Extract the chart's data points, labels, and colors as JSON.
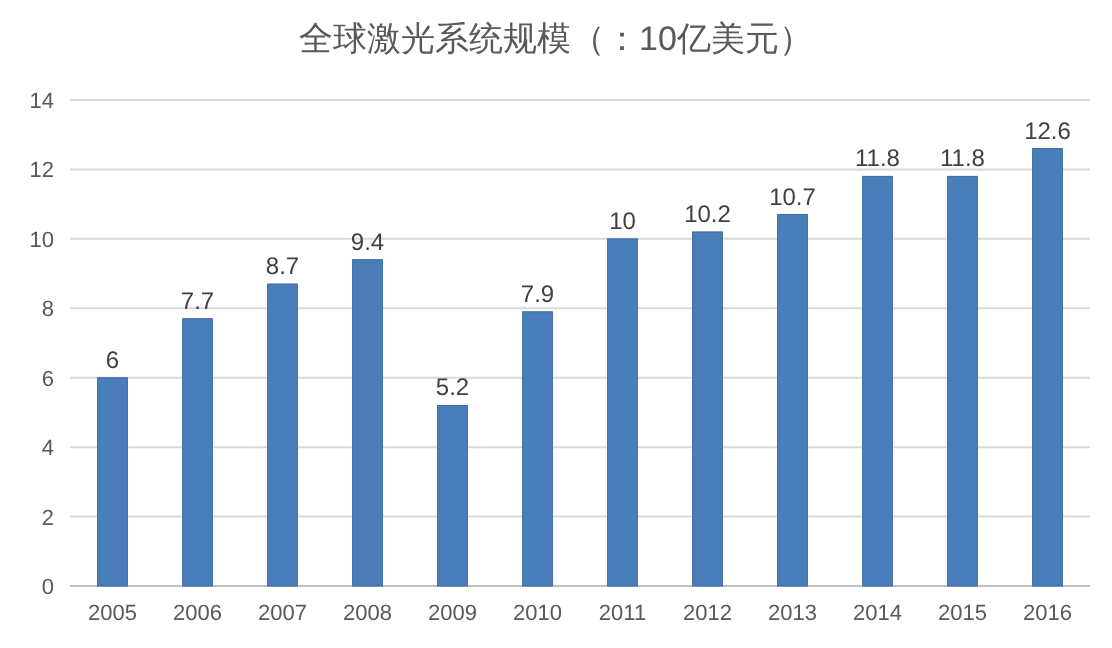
{
  "chart_data": {
    "type": "bar",
    "title": "全球激光系统规模（：10亿美元）",
    "categories": [
      "2005",
      "2006",
      "2007",
      "2008",
      "2009",
      "2010",
      "2011",
      "2012",
      "2013",
      "2014",
      "2015",
      "2016"
    ],
    "values": [
      6,
      7.7,
      8.7,
      9.4,
      5.2,
      7.9,
      10,
      10.2,
      10.7,
      11.8,
      11.8,
      12.6
    ],
    "color": "#4a7ebb",
    "ylim": [
      0,
      14
    ],
    "yticks": [
      0,
      2,
      4,
      6,
      8,
      10,
      12,
      14
    ],
    "grid": "y",
    "data_labels": true
  }
}
